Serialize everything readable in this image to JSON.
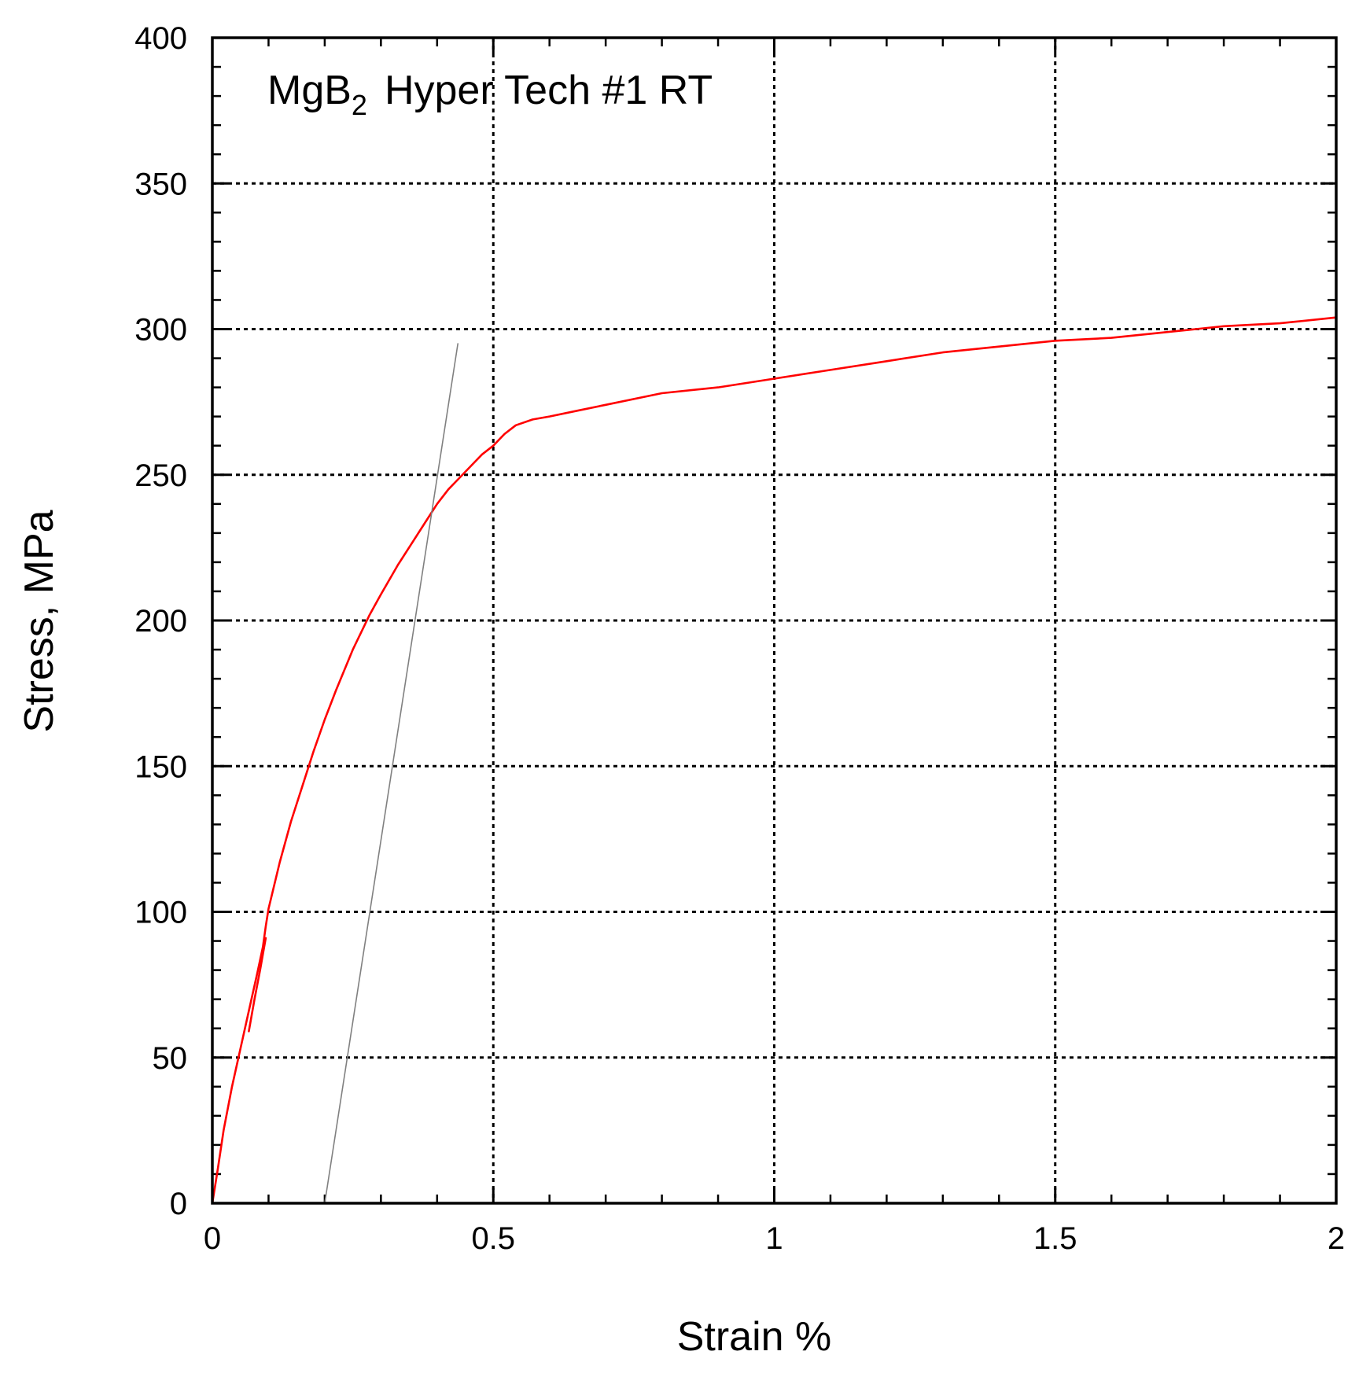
{
  "chart_data": {
    "type": "line",
    "title": {
      "main": "MgB",
      "subscript": "2",
      "rest": "Hyper Tech #1 RT"
    },
    "xlabel": "Strain %",
    "ylabel": "Stress, MPa",
    "xlim": [
      0,
      2
    ],
    "ylim": [
      0,
      400
    ],
    "x_ticks": [
      0,
      0.5,
      1,
      1.5,
      2
    ],
    "x_tick_labels": [
      "0",
      "0.5",
      "1",
      "1.5",
      "2"
    ],
    "y_ticks": [
      0,
      50,
      100,
      150,
      200,
      250,
      300,
      350,
      400
    ],
    "y_tick_labels": [
      "0",
      "50",
      "100",
      "150",
      "200",
      "250",
      "300",
      "350",
      "400"
    ],
    "x_minor_step": 0.1,
    "y_minor_step": 10,
    "grid": true,
    "grid_style": "dotted",
    "legend": "none",
    "series": [
      {
        "role": "stress-strain-curve",
        "color": "#ff0000",
        "x": [
          0,
          0.01,
          0.02,
          0.035,
          0.05,
          0.065,
          0.08,
          0.09,
          0.095,
          0.1,
          0.12,
          0.14,
          0.16,
          0.18,
          0.2,
          0.22,
          0.25,
          0.28,
          0.3,
          0.33,
          0.36,
          0.38,
          0.4,
          0.42,
          0.44,
          0.46,
          0.48,
          0.5,
          0.52,
          0.54,
          0.57,
          0.6,
          0.65,
          0.7,
          0.8,
          0.9,
          1.0,
          1.1,
          1.2,
          1.3,
          1.4,
          1.5,
          1.6,
          1.7,
          1.8,
          1.9,
          2.0
        ],
        "y": [
          0,
          12,
          25,
          40,
          53,
          66,
          79,
          88,
          95,
          101,
          117,
          131,
          143,
          155,
          166,
          176,
          190,
          202,
          209,
          219,
          228,
          234,
          240,
          245,
          249,
          253,
          257,
          260,
          264,
          267,
          269,
          270,
          272,
          274,
          278,
          280,
          283,
          286,
          289,
          292,
          294,
          296,
          297,
          299,
          301,
          302,
          304
        ]
      },
      {
        "role": "unloading-segment",
        "color": "#ff0000",
        "x": [
          0.065,
          0.075,
          0.085,
          0.095
        ],
        "y": [
          59,
          70,
          80,
          91
        ]
      },
      {
        "role": "offset-line",
        "color": "#808080",
        "x": [
          0.2,
          0.437
        ],
        "y": [
          0,
          295
        ]
      }
    ]
  }
}
